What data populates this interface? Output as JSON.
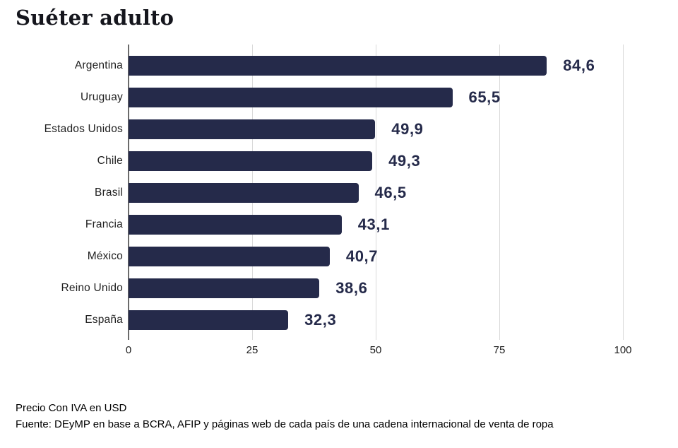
{
  "chart_data": {
    "type": "bar",
    "orientation": "horizontal",
    "title": "Suéter adulto",
    "categories": [
      "Argentina",
      "Uruguay",
      "Estados Unidos",
      "Chile",
      "Brasil",
      "Francia",
      "México",
      "Reino Unido",
      "España"
    ],
    "values": [
      84.6,
      65.5,
      49.9,
      49.3,
      46.5,
      43.1,
      40.7,
      38.6,
      32.3
    ],
    "value_labels": [
      "84,6",
      "65,5",
      "49,9",
      "49,3",
      "46,5",
      "43,1",
      "40,7",
      "38,6",
      "32,3"
    ],
    "x_ticks": [
      0,
      25,
      50,
      75,
      100
    ],
    "x_tick_labels": [
      "0",
      "25",
      "50",
      "75",
      "100"
    ],
    "xlim": [
      0,
      100
    ],
    "grid": true,
    "legend": false,
    "bar_color": "#252a4a",
    "value_label_color": "#252a4a",
    "gridline_color": "#d9d9d9",
    "axis_line_color": "#6b6b6b"
  },
  "footer": {
    "note": "Precio Con IVA en USD",
    "source": "Fuente: DEyMP en base a BCRA, AFIP y páginas web de cada país de una cadena internacional de venta de ropa"
  }
}
